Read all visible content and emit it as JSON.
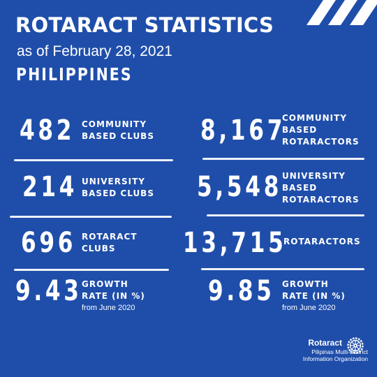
{
  "header": {
    "title": "ROTARACT STATISTICS",
    "subtitle": "as of February 28, 2021",
    "country": "PHILIPPINES"
  },
  "stats": {
    "community_clubs": {
      "value": "482",
      "label_1": "COMMUNITY",
      "label_2": "BASED CLUBS"
    },
    "community_rotaractors": {
      "value": "8,167",
      "label_1": "COMMUNITY",
      "label_2": "BASED",
      "label_3": "ROTARACTORS"
    },
    "university_clubs": {
      "value": "214",
      "label_1": "UNIVERSITY",
      "label_2": "BASED CLUBS"
    },
    "university_rotaractors": {
      "value": "5,548",
      "label_1": "UNIVERSITY",
      "label_2": "BASED",
      "label_3": "ROTARACTORS"
    },
    "rotaract_clubs": {
      "value": "696",
      "label_1": "ROTARACT",
      "label_2": "CLUBS"
    },
    "rotaractors": {
      "value": "13,715",
      "label_1": "ROTARACTORS"
    },
    "growth_clubs": {
      "value": "9.43",
      "label_1": "GROWTH",
      "label_2": "RATE (IN %)",
      "note": "from June 2020"
    },
    "growth_rotaractors": {
      "value": "9.85",
      "label_1": "GROWTH",
      "label_2": "RATE (IN %)",
      "note": "from June 2020"
    }
  },
  "logo": {
    "name": "Rotaract",
    "line_1": "Pilipinas Multi-District",
    "line_2": "Information Organization",
    "icon": "rotary-wheel-icon"
  },
  "colors": {
    "background": "#1f4eaa",
    "text": "#ffffff"
  }
}
